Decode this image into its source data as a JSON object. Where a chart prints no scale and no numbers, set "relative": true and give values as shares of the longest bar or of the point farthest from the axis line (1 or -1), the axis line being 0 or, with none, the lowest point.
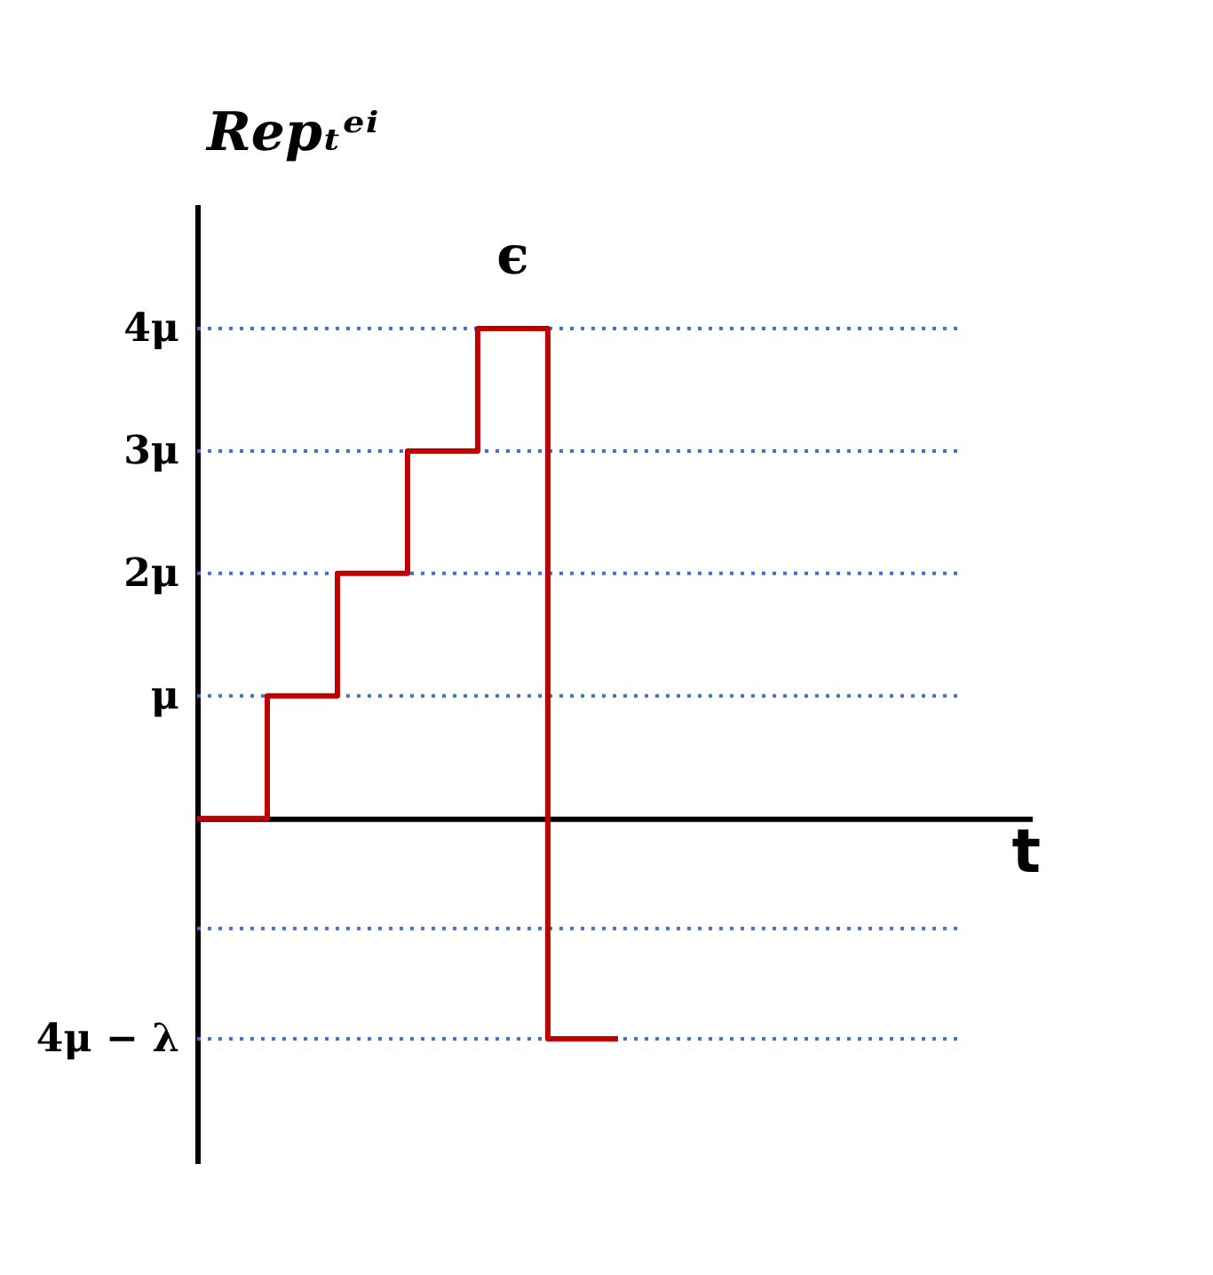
{
  "chart_data": {
    "type": "step",
    "relative": true,
    "ylabel": "Repₜᵉⁱ",
    "categories": [
      null,
      null,
      null,
      null,
      null,
      null,
      null
    ],
    "series": [
      {
        "color": "#c00000",
        "values": [
          0,
          0.25,
          0.5,
          0.75,
          1,
          -0.45,
          -0.45
        ]
      }
    ],
    "ref_lines": [
      {
        "axis": "y",
        "value": 1,
        "label": "4μ",
        "color": "#4472c4",
        "line_style": "dotted"
      },
      {
        "axis": "y",
        "value": 0.75,
        "label": "3μ",
        "color": "#4472c4",
        "line_style": "dotted"
      },
      {
        "axis": "y",
        "value": 0.5,
        "label": "2μ",
        "color": "#4472c4",
        "line_style": "dotted"
      },
      {
        "axis": "y",
        "value": 0.25,
        "label": "μ",
        "color": "#4472c4",
        "line_style": "dotted"
      },
      {
        "axis": "y",
        "value": -0.225,
        "label": null,
        "color": "#4472c4",
        "line_style": "dotted"
      },
      {
        "axis": "y",
        "value": -0.45,
        "label": "4μ − λ",
        "color": "#4472c4",
        "line_style": "dotted"
      }
    ],
    "marker": "none",
    "line_style": "solid",
    "annotations": [
      "ϵ",
      "t"
    ]
  }
}
